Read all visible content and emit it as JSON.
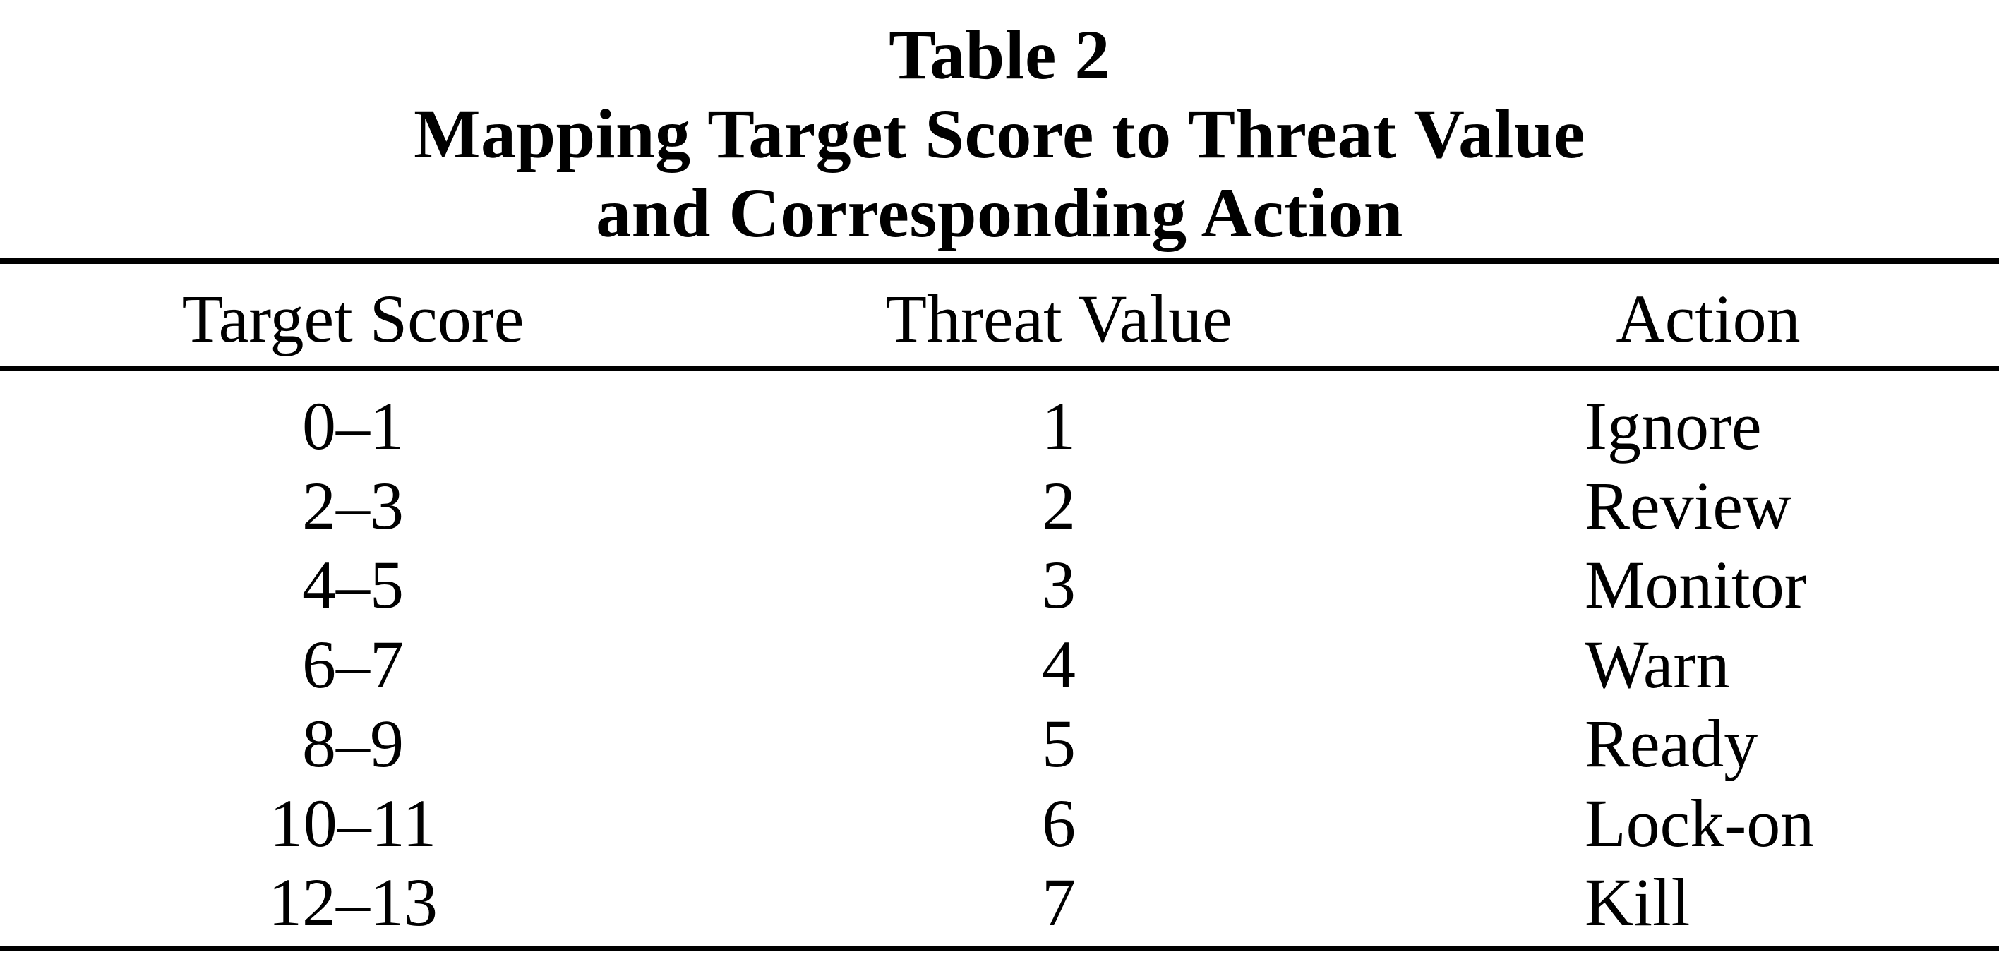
{
  "table": {
    "title_lines": [
      "Table 2",
      "Mapping Target Score to Threat Value",
      "and Corresponding Action"
    ],
    "columns": [
      "Target Score",
      "Threat Value",
      "Action"
    ],
    "rows": [
      {
        "target_score": "0–1",
        "threat_value": "1",
        "action": "Ignore"
      },
      {
        "target_score": "2–3",
        "threat_value": "2",
        "action": "Review"
      },
      {
        "target_score": "4–5",
        "threat_value": "3",
        "action": "Monitor"
      },
      {
        "target_score": "6–7",
        "threat_value": "4",
        "action": "Warn"
      },
      {
        "target_score": "8–9",
        "threat_value": "5",
        "action": "Ready"
      },
      {
        "target_score": "10–11",
        "threat_value": "6",
        "action": "Lock-on"
      },
      {
        "target_score": "12–13",
        "threat_value": "7",
        "action": "Kill"
      }
    ]
  }
}
